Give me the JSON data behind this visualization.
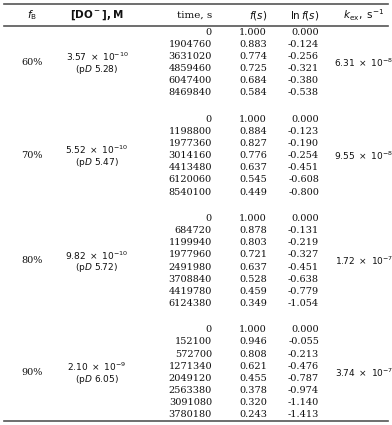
{
  "groups": [
    {
      "fb": "60%",
      "do_coeff": "3.57",
      "do_exp": "-10",
      "pD": "5.28",
      "kex_coeff": "6.31",
      "kex_exp": "-8",
      "rows": [
        [
          "0",
          "1.000",
          "0.000"
        ],
        [
          "1904760",
          "0.883",
          "-0.124"
        ],
        [
          "3631020",
          "0.774",
          "-0.256"
        ],
        [
          "4859460",
          "0.725",
          "-0.321"
        ],
        [
          "6047400",
          "0.684",
          "-0.380"
        ],
        [
          "8469840",
          "0.584",
          "-0.538"
        ]
      ]
    },
    {
      "fb": "70%",
      "do_coeff": "5.52",
      "do_exp": "-10",
      "pD": "5.47",
      "kex_coeff": "9.55",
      "kex_exp": "-8",
      "rows": [
        [
          "0",
          "1.000",
          "0.000"
        ],
        [
          "1198800",
          "0.884",
          "-0.123"
        ],
        [
          "1977360",
          "0.827",
          "-0.190"
        ],
        [
          "3014160",
          "0.776",
          "-0.254"
        ],
        [
          "4413480",
          "0.637",
          "-0.451"
        ],
        [
          "6120060",
          "0.545",
          "-0.608"
        ],
        [
          "8540100",
          "0.449",
          "-0.800"
        ]
      ]
    },
    {
      "fb": "80%",
      "do_coeff": "9.82",
      "do_exp": "-10",
      "pD": "5.72",
      "kex_coeff": "1.72",
      "kex_exp": "-7",
      "rows": [
        [
          "0",
          "1.000",
          "0.000"
        ],
        [
          "684720",
          "0.878",
          "-0.131"
        ],
        [
          "1199940",
          "0.803",
          "-0.219"
        ],
        [
          "1977960",
          "0.721",
          "-0.327"
        ],
        [
          "2491980",
          "0.637",
          "-0.451"
        ],
        [
          "3708840",
          "0.528",
          "-0.638"
        ],
        [
          "4419780",
          "0.459",
          "-0.779"
        ],
        [
          "6124380",
          "0.349",
          "-1.054"
        ]
      ]
    },
    {
      "fb": "90%",
      "do_coeff": "2.10",
      "do_exp": "-9",
      "pD": "6.05",
      "kex_coeff": "3.74",
      "kex_exp": "-7",
      "rows": [
        [
          "0",
          "1.000",
          "0.000"
        ],
        [
          "152100",
          "0.946",
          "-0.055"
        ],
        [
          "572700",
          "0.808",
          "-0.213"
        ],
        [
          "1271340",
          "0.621",
          "-0.476"
        ],
        [
          "2049120",
          "0.455",
          "-0.787"
        ],
        [
          "2563380",
          "0.378",
          "-0.974"
        ],
        [
          "3091080",
          "0.320",
          "-1.140"
        ],
        [
          "3780180",
          "0.243",
          "-1.413"
        ]
      ]
    }
  ],
  "text_color": "#111111",
  "line_color": "#555555",
  "font_size": 7.0,
  "header_font_size": 7.5
}
